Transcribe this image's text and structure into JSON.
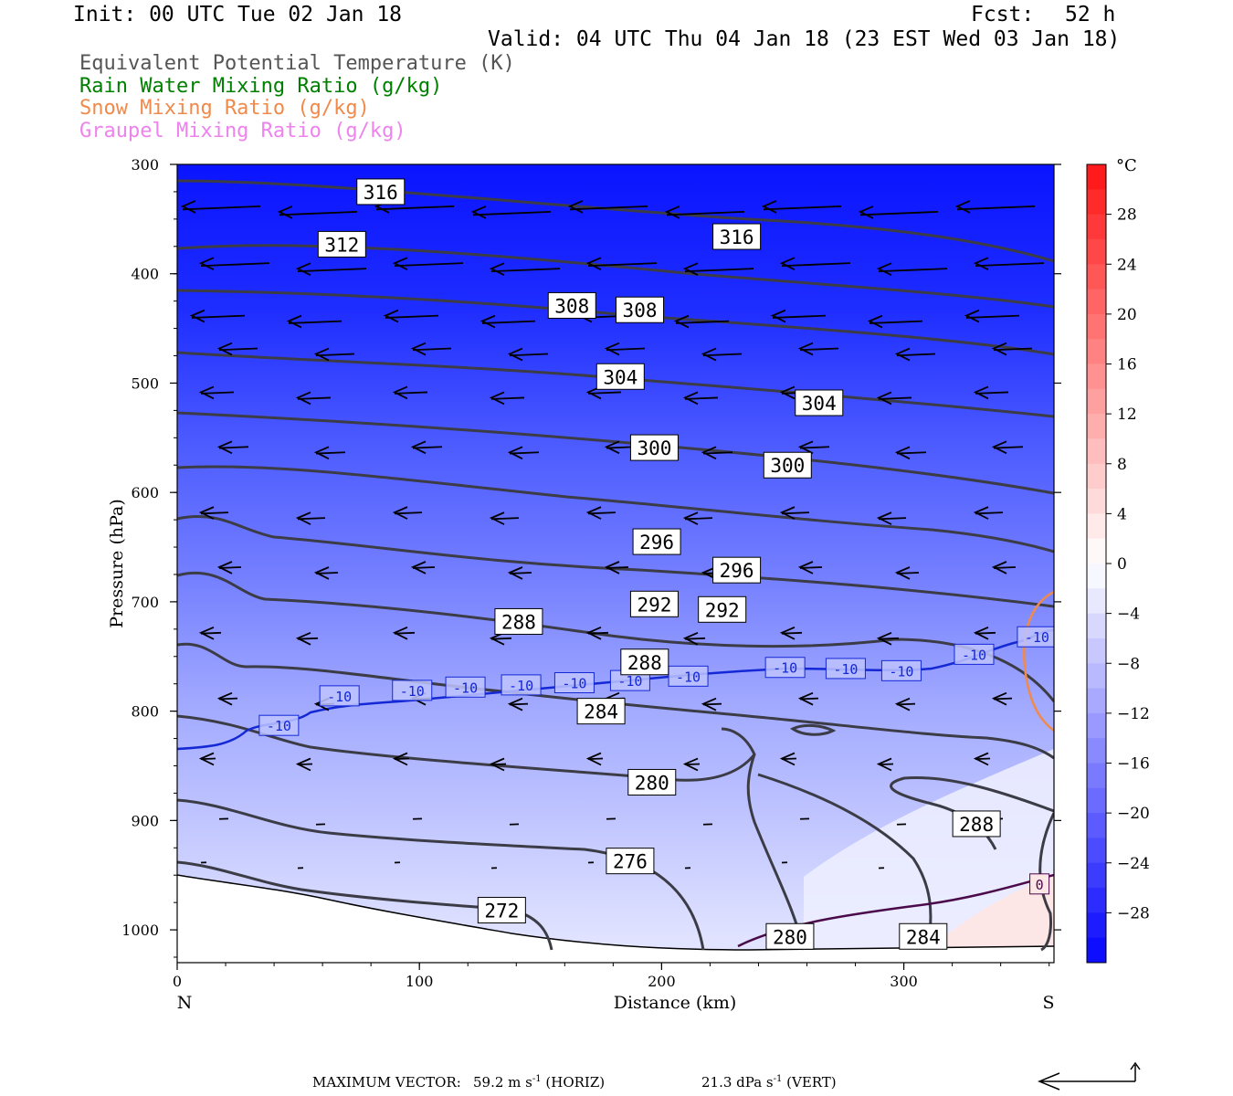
{
  "header": {
    "init": "Init: 00 UTC Tue 02 Jan 18",
    "fcst_label": "Fcst:",
    "fcst_value": "52 h",
    "valid": "Valid: 04 UTC Thu 04 Jan 18 (23 EST Wed 03 Jan 18)"
  },
  "legend": [
    {
      "text": "Equivalent Potential Temperature (K)",
      "color": "#555555"
    },
    {
      "text": "Rain Water Mixing Ratio (g/kg)",
      "color": "#008000"
    },
    {
      "text": "Snow Mixing Ratio (g/kg)",
      "color": "#f08a4b"
    },
    {
      "text": "Graupel Mixing Ratio (g/kg)",
      "color": "#ee82ee"
    }
  ],
  "footer": {
    "max_vector_label": "MAXIMUM VECTOR:",
    "horiz_value": "59.2 m s",
    "horiz_exp": "-1",
    "horiz_unit": "(HORIZ)",
    "vert_value": "21.3 dPa s",
    "vert_exp": "-1",
    "vert_unit": "(VERT)"
  },
  "chart_data": {
    "type": "heatmap",
    "xlabel": "Distance (km)",
    "ylabel": "Pressure (hPa)",
    "xlim": [
      0,
      362
    ],
    "ylim": [
      1030,
      300
    ],
    "x_ticks": [
      0,
      100,
      200,
      300
    ],
    "y_ticks": [
      300,
      400,
      500,
      600,
      700,
      800,
      900,
      1000
    ],
    "x_end_labels": {
      "left": "N",
      "right": "S"
    },
    "colorbar": {
      "unit": "°C",
      "ticks": [
        28,
        24,
        20,
        16,
        12,
        8,
        4,
        0,
        -4,
        -8,
        -12,
        -16,
        -20,
        -24,
        -28
      ],
      "range": [
        -32,
        32
      ]
    },
    "theta_e_labels": [
      {
        "text": "316",
        "x": 84,
        "p": 325
      },
      {
        "text": "316",
        "x": 231,
        "p": 366
      },
      {
        "text": "312",
        "x": 68,
        "p": 373
      },
      {
        "text": "308",
        "x": 163,
        "p": 429
      },
      {
        "text": "308",
        "x": 191,
        "p": 433
      },
      {
        "text": "304",
        "x": 183,
        "p": 494
      },
      {
        "text": "304",
        "x": 265,
        "p": 518
      },
      {
        "text": "300",
        "x": 197,
        "p": 559
      },
      {
        "text": "300",
        "x": 252,
        "p": 575
      },
      {
        "text": "296",
        "x": 198,
        "p": 645
      },
      {
        "text": "296",
        "x": 231,
        "p": 671
      },
      {
        "text": "292",
        "x": 197,
        "p": 702
      },
      {
        "text": "292",
        "x": 225,
        "p": 707
      },
      {
        "text": "288",
        "x": 141,
        "p": 718
      },
      {
        "text": "288",
        "x": 193,
        "p": 755
      },
      {
        "text": "284",
        "x": 175,
        "p": 800
      },
      {
        "text": "280",
        "x": 196,
        "p": 865
      },
      {
        "text": "288",
        "x": 330,
        "p": 903
      },
      {
        "text": "276",
        "x": 187,
        "p": 937
      },
      {
        "text": "272",
        "x": 134,
        "p": 982
      },
      {
        "text": "280",
        "x": 253,
        "p": 1006
      },
      {
        "text": "284",
        "x": 308,
        "p": 1006
      }
    ],
    "isotherm_labels": [
      {
        "text": "-10",
        "x": 42,
        "p": 813
      },
      {
        "text": "-10",
        "x": 67,
        "p": 786
      },
      {
        "text": "-10",
        "x": 97,
        "p": 781
      },
      {
        "text": "-10",
        "x": 119,
        "p": 778
      },
      {
        "text": "-10",
        "x": 142,
        "p": 776
      },
      {
        "text": "-10",
        "x": 164,
        "p": 774
      },
      {
        "text": "-10",
        "x": 187,
        "p": 772
      },
      {
        "text": "-10",
        "x": 211,
        "p": 768
      },
      {
        "text": "-10",
        "x": 251,
        "p": 760
      },
      {
        "text": "-10",
        "x": 276,
        "p": 761
      },
      {
        "text": "-10",
        "x": 299,
        "p": 763
      },
      {
        "text": "-10",
        "x": 329,
        "p": 748
      },
      {
        "text": "-10",
        "x": 355,
        "p": 732
      },
      {
        "text": "0",
        "x": 356,
        "p": 958
      }
    ]
  }
}
